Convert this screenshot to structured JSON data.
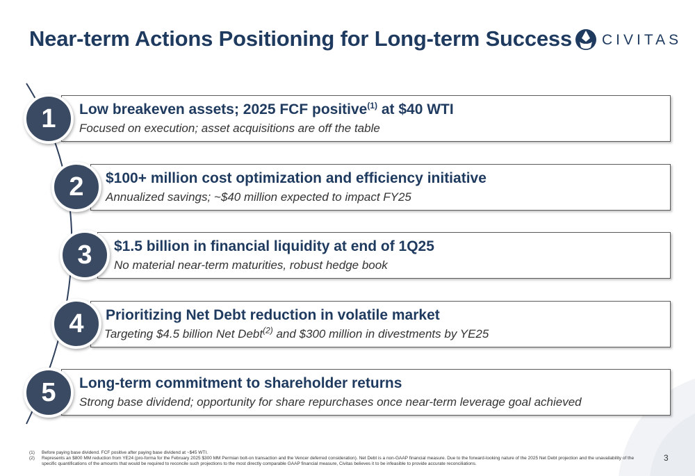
{
  "title": "Near-term Actions Positioning for Long-term Success",
  "logo": {
    "text": "CIVITAS"
  },
  "items": [
    {
      "number": "1",
      "head": "Low breakeven assets; 2025 FCF positive",
      "head_sup": "(1)",
      "head_tail": " at $40 WTI",
      "sub": "Focused on execution; asset acquisitions are off the table",
      "sub_sup": "",
      "sub_tail": ""
    },
    {
      "number": "2",
      "head": "$100+ million cost optimization and efficiency initiative",
      "head_sup": "",
      "head_tail": "",
      "sub": "Annualized savings; ~$40 million expected to impact FY25",
      "sub_sup": "",
      "sub_tail": ""
    },
    {
      "number": "3",
      "head": "$1.5 billion in financial liquidity at end of 1Q25",
      "head_sup": "",
      "head_tail": "",
      "sub": "No material near-term maturities, robust hedge book",
      "sub_sup": "",
      "sub_tail": ""
    },
    {
      "number": "4",
      "head": "Prioritizing Net Debt reduction in volatile market",
      "head_sup": "",
      "head_tail": "",
      "sub": "Targeting $4.5 billion Net Debt",
      "sub_sup": "(2)",
      "sub_tail": " and $300 million in divestments by YE25"
    },
    {
      "number": "5",
      "head": "Long-term commitment to shareholder returns",
      "head_sup": "",
      "head_tail": "",
      "sub": "Strong base dividend; opportunity for share repurchases once near-term leverage goal achieved",
      "sub_sup": "",
      "sub_tail": ""
    }
  ],
  "footnotes": [
    {
      "n": "(1)",
      "text": "Before paying base dividend. FCF positive after paying base dividend at ~$45 WTI."
    },
    {
      "n": "(2)",
      "text": "Represents an $800 MM reduction from YE24 (pro-forma for the February 2025 $300 MM Permian bolt-on transaction and the Vencer deferred consideration). Net Debt is a non-GAAP financial measure. Due to the forward-looking nature of the 2025 Net Debt projection and the unavailability of the specific quantifications of the amounts that would be required to reconcile such projections to the most directly comparable GAAP financial measure, Civitas believes it to be infeasible to provide accurate reconciliations."
    }
  ],
  "page_number": "3",
  "colors": {
    "navy": "#1f3a5f",
    "circle": "#3b4a63",
    "arc": "#1f3a5f"
  }
}
